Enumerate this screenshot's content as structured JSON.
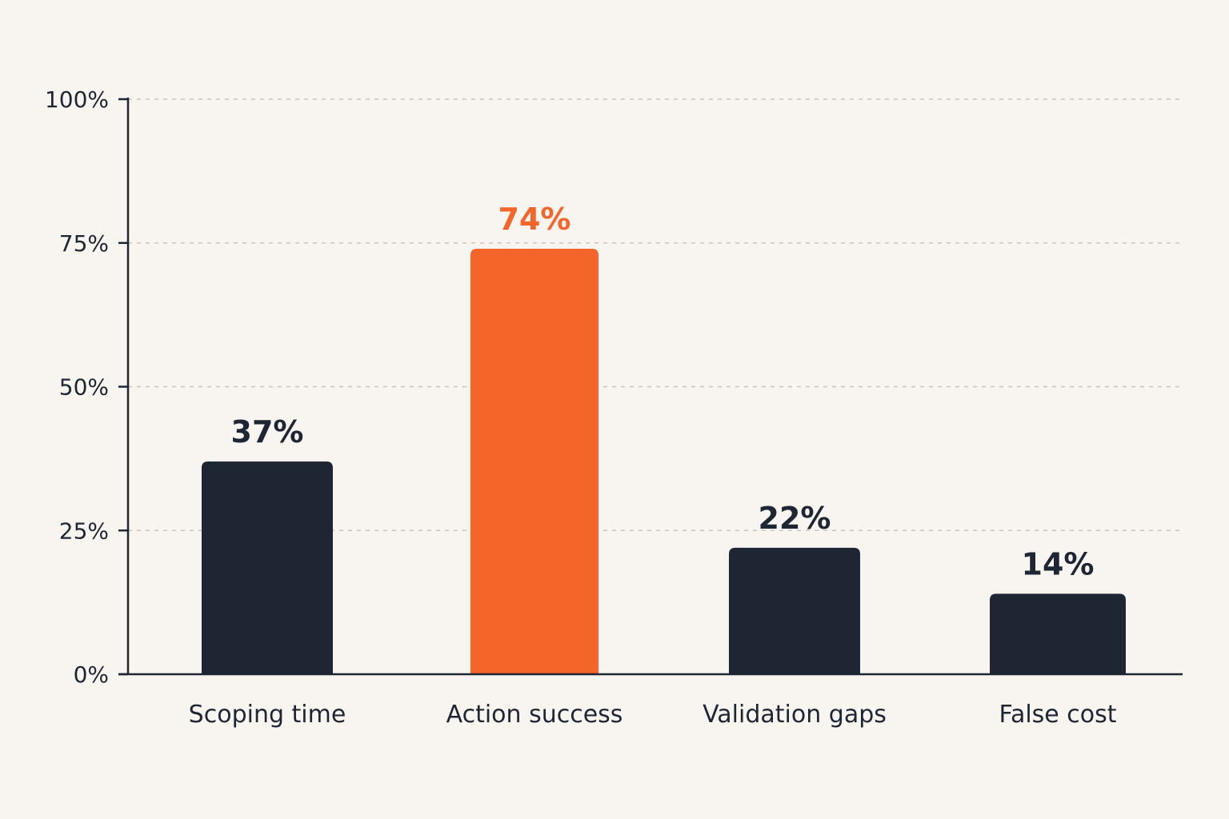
{
  "chart_data": {
    "type": "bar",
    "categories": [
      "Scoping time",
      "Action success",
      "Validation gaps",
      "False cost"
    ],
    "values": [
      37,
      74,
      22,
      14
    ],
    "value_labels": [
      "37%",
      "74%",
      "22%",
      "14%"
    ],
    "highlight_index": 1,
    "title": "",
    "xlabel": "",
    "ylabel": "",
    "ylim": [
      0,
      100
    ],
    "yticks": [
      0,
      25,
      50,
      75,
      100
    ],
    "ytick_labels": [
      "0%",
      "25%",
      "50%",
      "75%",
      "100%"
    ],
    "grid": true,
    "colors": {
      "bar": "#1f2633",
      "highlight": "#f4652a",
      "axis": "#1f2633",
      "grid": "#c9c5bf",
      "background": "#f8f5f0"
    }
  }
}
